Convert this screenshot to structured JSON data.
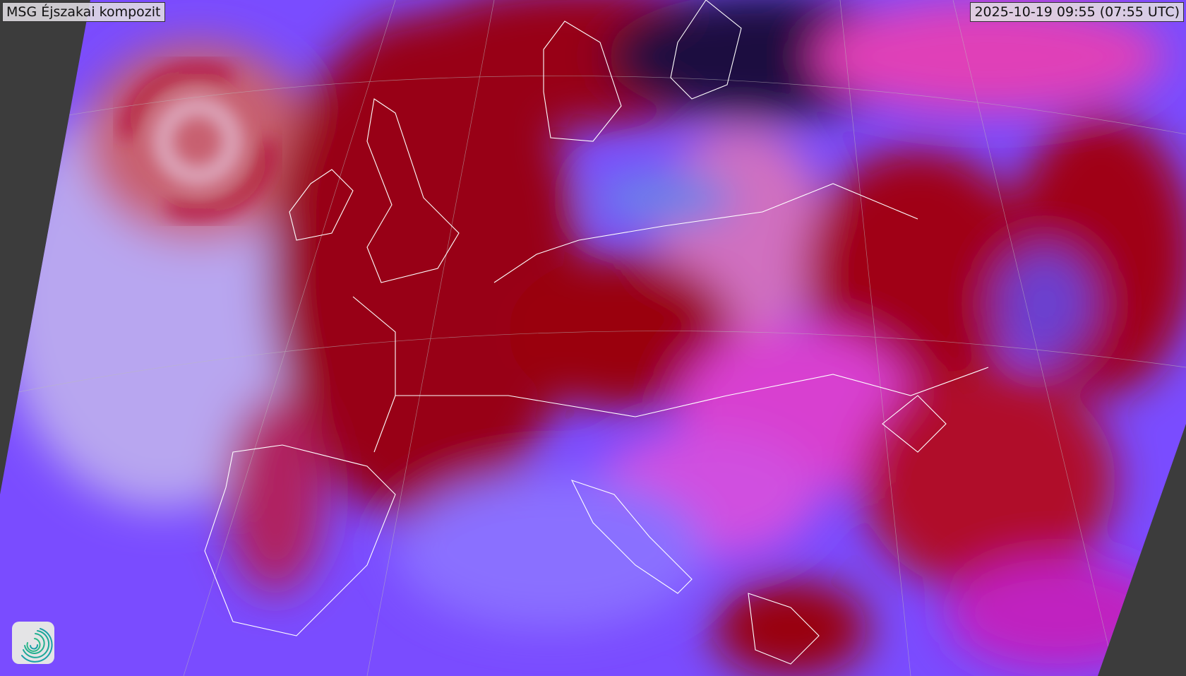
{
  "title": "MSG Éjszakai kompozit",
  "timestamp": "2025-10-19 09:55 (07:55 UTC)",
  "logo_icon": "swirl-logo-icon",
  "colors": {
    "background": "#3c3c3c",
    "cloud_red": "#9a0010",
    "cloud_magenta": "#c0189a",
    "clear_blue": "#7a4cff",
    "low_cloud_pink": "#e8c8e8",
    "coastline": "#ffffff",
    "logo_teal": "#1aa59a"
  }
}
